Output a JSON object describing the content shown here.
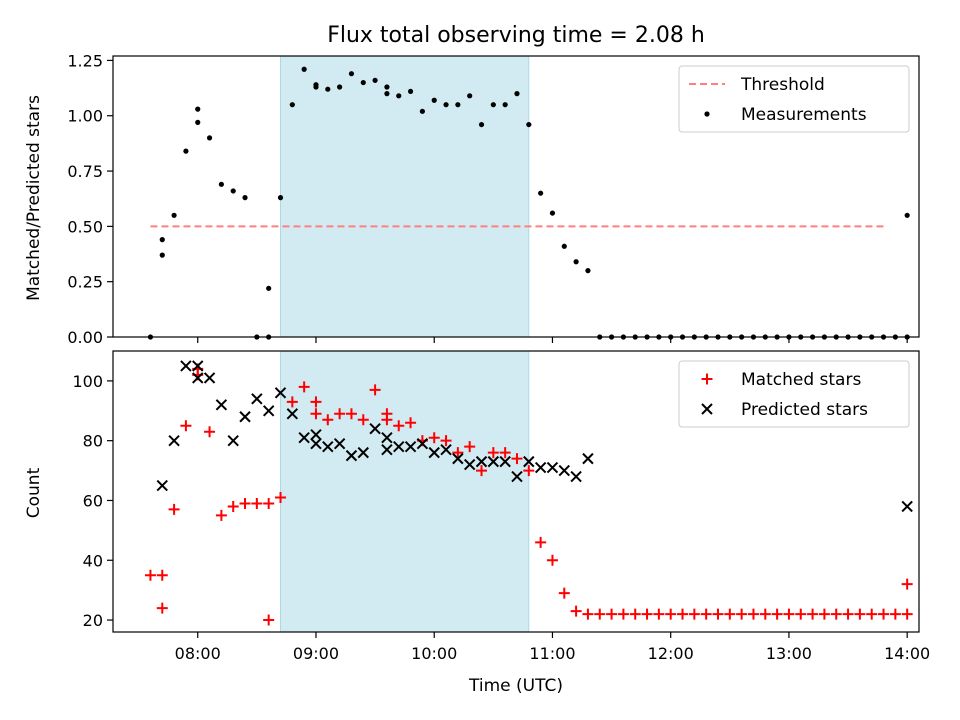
{
  "chart_data": [
    {
      "type": "scatter",
      "title": "Flux total observing time = 2.08 h",
      "xlabel": "",
      "ylabel": "Matched/Predicted stars",
      "xlim": [
        "07:17",
        "14:06"
      ],
      "ylim": [
        0,
        1.27
      ],
      "yticks": [
        0.0,
        0.25,
        0.5,
        0.75,
        1.0,
        1.25
      ],
      "ytick_labels": [
        "0.00",
        "0.25",
        "0.50",
        "0.75",
        "1.00",
        "1.25"
      ],
      "shaded_interval": {
        "x": [
          "08:42",
          "10:48"
        ],
        "color": "#add8e6"
      },
      "legend": {
        "position": "upper-right",
        "entries": [
          "Threshold",
          "Measurements"
        ]
      },
      "threshold": {
        "name": "Threshold",
        "y": 0.5,
        "x": [
          "07:36",
          "13:48"
        ],
        "color": "#ff7f7f",
        "style": "dashed"
      },
      "series": [
        {
          "name": "Measurements",
          "color": "#000000",
          "marker": "dot",
          "points": [
            [
              "07:36",
              0.0
            ],
            [
              "07:42",
              0.37
            ],
            [
              "07:42",
              0.44
            ],
            [
              "07:48",
              0.55
            ],
            [
              "07:54",
              0.84
            ],
            [
              "08:00",
              0.97
            ],
            [
              "08:00",
              1.03
            ],
            [
              "08:06",
              0.9
            ],
            [
              "08:12",
              0.69
            ],
            [
              "08:18",
              0.66
            ],
            [
              "08:24",
              0.63
            ],
            [
              "08:30",
              0.0
            ],
            [
              "08:36",
              0.0
            ],
            [
              "08:36",
              0.22
            ],
            [
              "08:42",
              0.63
            ],
            [
              "08:48",
              1.05
            ],
            [
              "08:54",
              1.21
            ],
            [
              "09:00",
              1.13
            ],
            [
              "09:00",
              1.14
            ],
            [
              "09:06",
              1.12
            ],
            [
              "09:12",
              1.13
            ],
            [
              "09:18",
              1.19
            ],
            [
              "09:24",
              1.15
            ],
            [
              "09:30",
              1.16
            ],
            [
              "09:36",
              1.1
            ],
            [
              "09:36",
              1.13
            ],
            [
              "09:42",
              1.09
            ],
            [
              "09:48",
              1.11
            ],
            [
              "09:54",
              1.02
            ],
            [
              "10:00",
              1.07
            ],
            [
              "10:06",
              1.05
            ],
            [
              "10:12",
              1.05
            ],
            [
              "10:18",
              1.09
            ],
            [
              "10:24",
              0.96
            ],
            [
              "10:30",
              1.05
            ],
            [
              "10:36",
              1.05
            ],
            [
              "10:42",
              1.1
            ],
            [
              "10:48",
              0.96
            ],
            [
              "10:54",
              0.65
            ],
            [
              "11:00",
              0.56
            ],
            [
              "11:06",
              0.41
            ],
            [
              "11:12",
              0.34
            ],
            [
              "11:18",
              0.3
            ],
            [
              "11:24",
              0.0
            ],
            [
              "11:30",
              0.0
            ],
            [
              "11:36",
              0.0
            ],
            [
              "11:42",
              0.0
            ],
            [
              "11:48",
              0.0
            ],
            [
              "11:54",
              0.0
            ],
            [
              "12:00",
              0.0
            ],
            [
              "12:06",
              0.0
            ],
            [
              "12:12",
              0.0
            ],
            [
              "12:18",
              0.0
            ],
            [
              "12:24",
              0.0
            ],
            [
              "12:30",
              0.0
            ],
            [
              "12:36",
              0.0
            ],
            [
              "12:42",
              0.0
            ],
            [
              "12:48",
              0.0
            ],
            [
              "12:54",
              0.0
            ],
            [
              "13:00",
              0.0
            ],
            [
              "13:06",
              0.0
            ],
            [
              "13:12",
              0.0
            ],
            [
              "13:18",
              0.0
            ],
            [
              "13:24",
              0.0
            ],
            [
              "13:30",
              0.0
            ],
            [
              "13:36",
              0.0
            ],
            [
              "13:42",
              0.0
            ],
            [
              "13:48",
              0.0
            ],
            [
              "13:54",
              0.0
            ],
            [
              "14:00",
              0.0
            ],
            [
              "14:00",
              0.55
            ]
          ]
        }
      ]
    },
    {
      "type": "scatter",
      "title": "",
      "xlabel": "Time (UTC)",
      "ylabel": "Count",
      "xlim": [
        "07:17",
        "14:06"
      ],
      "xticks": [
        "08:00",
        "09:00",
        "10:00",
        "11:00",
        "12:00",
        "13:00",
        "14:00"
      ],
      "xtick_labels": [
        "08:00",
        "09:00",
        "10:00",
        "11:00",
        "12:00",
        "13:00",
        "14:00"
      ],
      "ylim": [
        16,
        110
      ],
      "yticks": [
        20,
        40,
        60,
        80,
        100
      ],
      "ytick_labels": [
        "20",
        "40",
        "60",
        "80",
        "100"
      ],
      "shaded_interval": {
        "x": [
          "08:42",
          "10:48"
        ],
        "color": "#add8e6"
      },
      "legend": {
        "position": "upper-right",
        "entries": [
          "Matched stars",
          "Predicted stars"
        ]
      },
      "series": [
        {
          "name": "Matched stars",
          "color": "#ff0000",
          "marker": "plus",
          "points": [
            [
              "07:36",
              35
            ],
            [
              "07:42",
              24
            ],
            [
              "07:42",
              35
            ],
            [
              "07:48",
              57
            ],
            [
              "07:54",
              85
            ],
            [
              "08:00",
              102
            ],
            [
              "08:00",
              104
            ],
            [
              "08:06",
              83
            ],
            [
              "08:12",
              55
            ],
            [
              "08:18",
              58
            ],
            [
              "08:24",
              59
            ],
            [
              "08:30",
              59
            ],
            [
              "08:36",
              59
            ],
            [
              "08:36",
              20
            ],
            [
              "08:42",
              61
            ],
            [
              "08:48",
              93
            ],
            [
              "08:54",
              98
            ],
            [
              "09:00",
              89
            ],
            [
              "09:00",
              93
            ],
            [
              "09:06",
              87
            ],
            [
              "09:12",
              89
            ],
            [
              "09:18",
              89
            ],
            [
              "09:24",
              87
            ],
            [
              "09:30",
              97
            ],
            [
              "09:36",
              89
            ],
            [
              "09:36",
              87
            ],
            [
              "09:42",
              85
            ],
            [
              "09:48",
              86
            ],
            [
              "09:54",
              80
            ],
            [
              "10:00",
              81
            ],
            [
              "10:06",
              80
            ],
            [
              "10:12",
              76
            ],
            [
              "10:18",
              78
            ],
            [
              "10:24",
              70
            ],
            [
              "10:30",
              76
            ],
            [
              "10:36",
              76
            ],
            [
              "10:42",
              74
            ],
            [
              "10:48",
              70
            ],
            [
              "10:54",
              46
            ],
            [
              "11:00",
              40
            ],
            [
              "11:06",
              29
            ],
            [
              "11:12",
              23
            ],
            [
              "11:18",
              22
            ],
            [
              "11:24",
              22
            ],
            [
              "11:30",
              22
            ],
            [
              "11:36",
              22
            ],
            [
              "11:42",
              22
            ],
            [
              "11:48",
              22
            ],
            [
              "11:54",
              22
            ],
            [
              "12:00",
              22
            ],
            [
              "12:06",
              22
            ],
            [
              "12:12",
              22
            ],
            [
              "12:18",
              22
            ],
            [
              "12:24",
              22
            ],
            [
              "12:30",
              22
            ],
            [
              "12:36",
              22
            ],
            [
              "12:42",
              22
            ],
            [
              "12:48",
              22
            ],
            [
              "12:54",
              22
            ],
            [
              "13:00",
              22
            ],
            [
              "13:06",
              22
            ],
            [
              "13:12",
              22
            ],
            [
              "13:18",
              22
            ],
            [
              "13:24",
              22
            ],
            [
              "13:30",
              22
            ],
            [
              "13:36",
              22
            ],
            [
              "13:42",
              22
            ],
            [
              "13:48",
              22
            ],
            [
              "13:54",
              22
            ],
            [
              "14:00",
              22
            ],
            [
              "14:00",
              32
            ]
          ]
        },
        {
          "name": "Predicted stars",
          "color": "#000000",
          "marker": "x",
          "points": [
            [
              "07:42",
              65
            ],
            [
              "07:48",
              80
            ],
            [
              "07:54",
              105
            ],
            [
              "08:00",
              101
            ],
            [
              "08:00",
              105
            ],
            [
              "08:06",
              101
            ],
            [
              "08:12",
              92
            ],
            [
              "08:18",
              80
            ],
            [
              "08:24",
              88
            ],
            [
              "08:30",
              94
            ],
            [
              "08:36",
              90
            ],
            [
              "08:42",
              96
            ],
            [
              "08:48",
              89
            ],
            [
              "08:54",
              81
            ],
            [
              "09:00",
              79
            ],
            [
              "09:00",
              82
            ],
            [
              "09:06",
              78
            ],
            [
              "09:12",
              79
            ],
            [
              "09:18",
              75
            ],
            [
              "09:24",
              76
            ],
            [
              "09:30",
              84
            ],
            [
              "09:36",
              81
            ],
            [
              "09:36",
              77
            ],
            [
              "09:42",
              78
            ],
            [
              "09:48",
              78
            ],
            [
              "09:54",
              79
            ],
            [
              "10:00",
              76
            ],
            [
              "10:06",
              77
            ],
            [
              "10:12",
              74
            ],
            [
              "10:18",
              72
            ],
            [
              "10:24",
              73
            ],
            [
              "10:30",
              73
            ],
            [
              "10:36",
              73
            ],
            [
              "10:42",
              68
            ],
            [
              "10:48",
              73
            ],
            [
              "10:54",
              71
            ],
            [
              "11:00",
              71
            ],
            [
              "11:06",
              70
            ],
            [
              "11:12",
              68
            ],
            [
              "11:18",
              74
            ],
            [
              "14:00",
              58
            ]
          ]
        }
      ]
    }
  ]
}
